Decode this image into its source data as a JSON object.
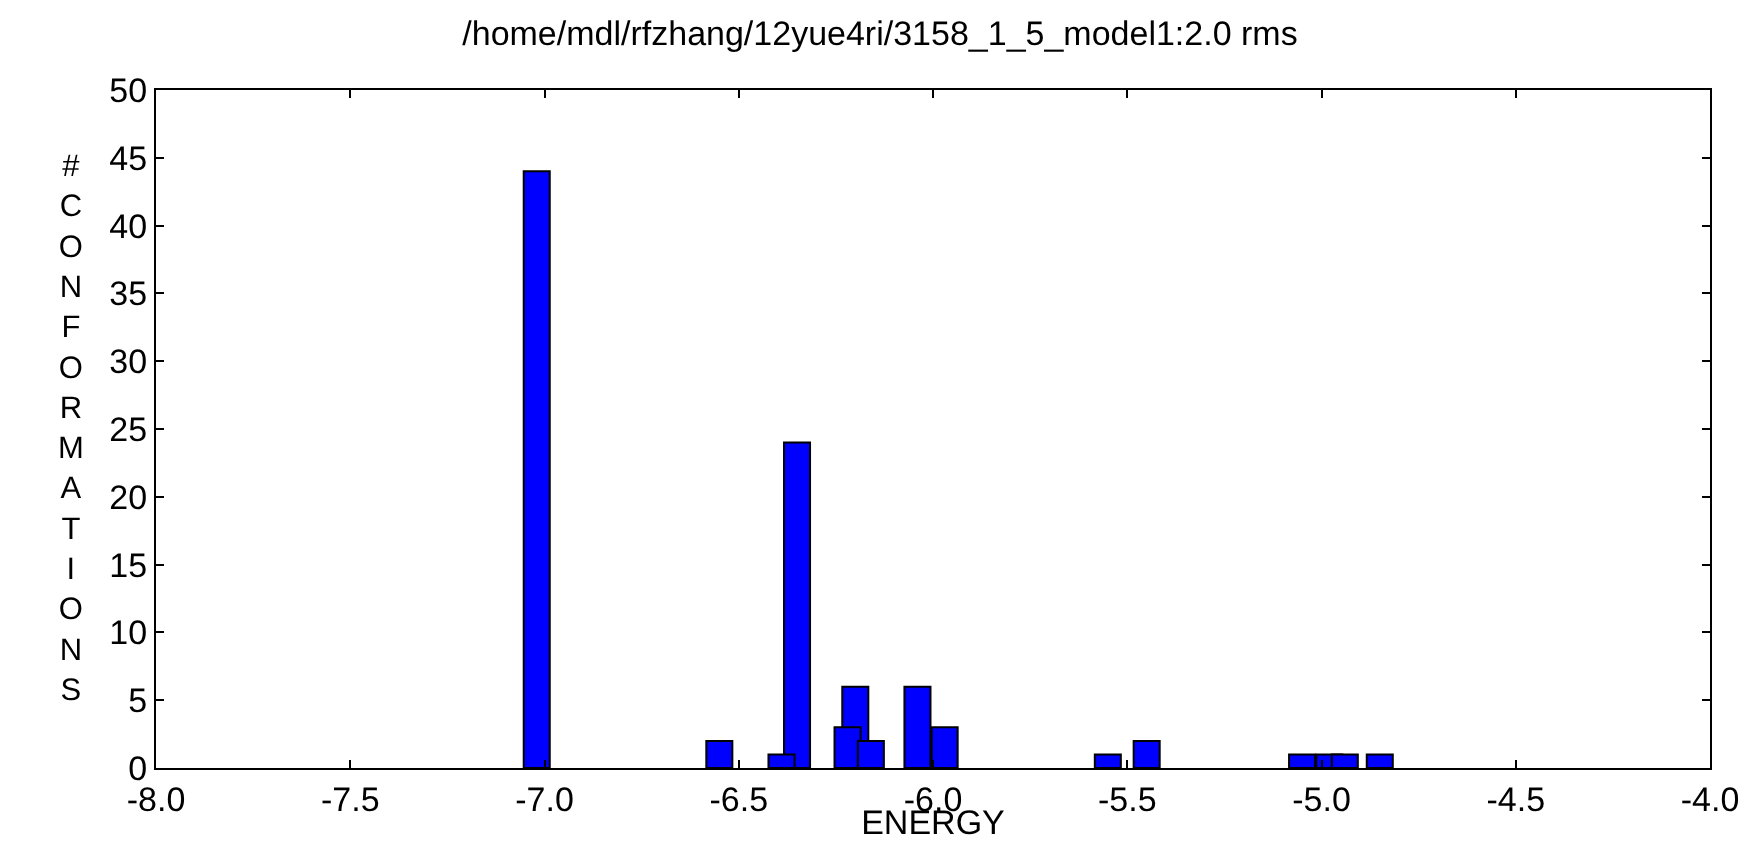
{
  "chart_data": {
    "type": "bar",
    "title": "/home/mdl/rfzhang/12yue4ri/3158_1_5_model1:2.0 rms",
    "xlabel": "ENERGY",
    "ylabel": "#CONFORMATIONS",
    "x": [
      -7.02,
      -6.55,
      -6.39,
      -6.35,
      -6.22,
      -6.2,
      -6.16,
      -6.04,
      -5.97,
      -5.55,
      -5.45,
      -5.05,
      -4.98,
      -4.94,
      -4.85
    ],
    "values": [
      44,
      2,
      1,
      24,
      3,
      6,
      2,
      6,
      3,
      1,
      2,
      1,
      1,
      1,
      1
    ],
    "color": "#0000ff",
    "xlim": [
      -8,
      -4
    ],
    "xticks": [
      {
        "value": -8,
        "label": "-8.0"
      },
      {
        "value": -7.5,
        "label": "-7.5"
      },
      {
        "value": -7,
        "label": "-7.0"
      },
      {
        "value": -6.5,
        "label": "-6.5"
      },
      {
        "value": -6,
        "label": "-6.0"
      },
      {
        "value": -5.5,
        "label": "-5.5"
      },
      {
        "value": -5,
        "label": "-5.0"
      },
      {
        "value": -4.5,
        "label": "-4.5"
      },
      {
        "value": -4,
        "label": "-4.0"
      }
    ],
    "ylim": [
      0,
      50
    ],
    "yticks": [
      0,
      5,
      10,
      15,
      20,
      25,
      30,
      35,
      40,
      45,
      50
    ],
    "grid": false
  }
}
